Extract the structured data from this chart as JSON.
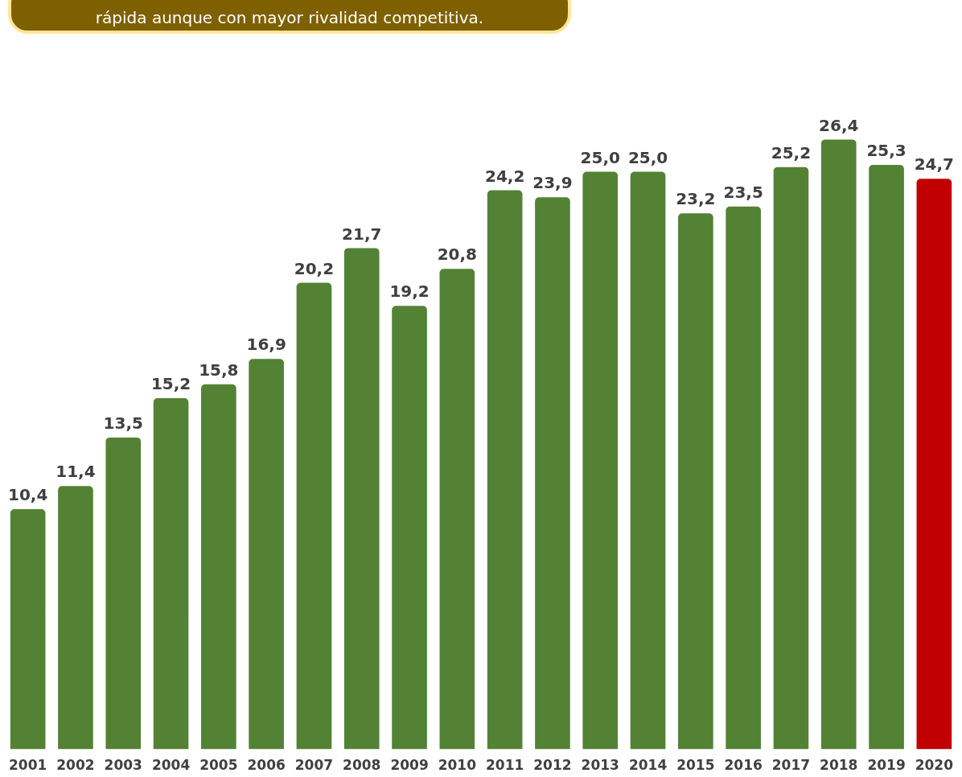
{
  "chart_data": {
    "type": "bar",
    "title": "rápida aunque con mayor rivalidad competitiva.",
    "categories": [
      "2001",
      "2002",
      "2003",
      "2004",
      "2005",
      "2006",
      "2007",
      "2008",
      "2009",
      "2010",
      "2011",
      "2012",
      "2013",
      "2014",
      "2015",
      "2016",
      "2017",
      "2018",
      "2019",
      "2020"
    ],
    "values": [
      10.4,
      11.4,
      13.5,
      15.2,
      15.8,
      16.9,
      20.2,
      21.7,
      19.2,
      20.8,
      24.2,
      23.9,
      25.0,
      25.0,
      23.2,
      23.5,
      25.2,
      26.4,
      25.3,
      24.7
    ],
    "colors": [
      "#548235",
      "#548235",
      "#548235",
      "#548235",
      "#548235",
      "#548235",
      "#548235",
      "#548235",
      "#548235",
      "#548235",
      "#548235",
      "#548235",
      "#548235",
      "#548235",
      "#548235",
      "#548235",
      "#548235",
      "#548235",
      "#548235",
      "#c00000"
    ],
    "value_labels": [
      "10,4",
      "11,4",
      "13,5",
      "15,2",
      "15,8",
      "16,9",
      "20,2",
      "21,7",
      "19,2",
      "20,8",
      "24,2",
      "23,9",
      "25,0",
      "25,0",
      "23,2",
      "23,5",
      "25,2",
      "26,4",
      "25,3",
      "24,7"
    ],
    "tick_labels": "x",
    "grid": false,
    "legend": false
  }
}
